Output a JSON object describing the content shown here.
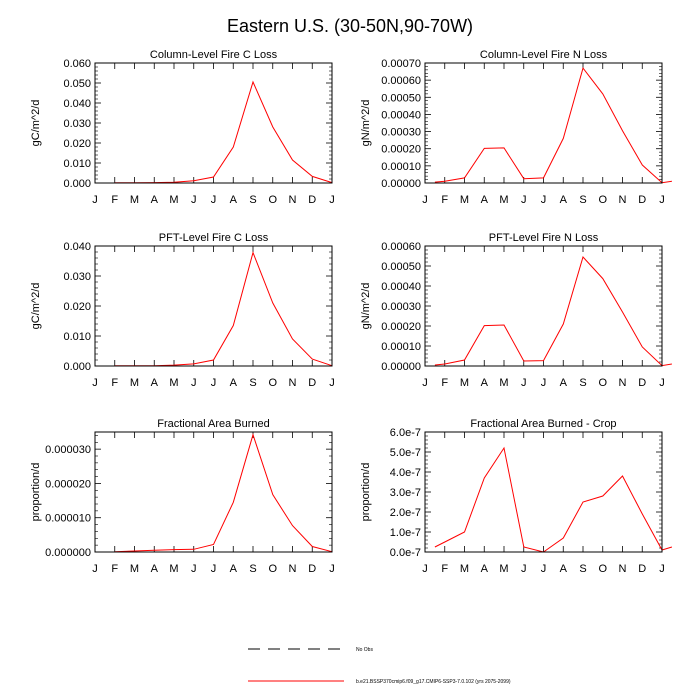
{
  "figure_title": "Eastern U.S. (30-50N,90-70W)",
  "months": [
    "J",
    "F",
    "M",
    "A",
    "M",
    "J",
    "J",
    "A",
    "S",
    "O",
    "N",
    "D",
    "J"
  ],
  "line_color": "#ff0000",
  "legend": {
    "obs_label": "No Obs",
    "model_label": "b.e21.BSSP370cmip6.f09_g17.CMIP6-SSP3-7.0.102 (yrs 2075-2099)"
  },
  "chart_data": [
    {
      "type": "line",
      "title": "Column-Level Fire C Loss",
      "ylabel": "gC/m^2/d",
      "ylim": [
        0,
        0.06
      ],
      "yticks": [
        0,
        0.01,
        0.02,
        0.03,
        0.04,
        0.05,
        0.06
      ],
      "ytick_labels": [
        "0.000",
        "0.010",
        "0.020",
        "0.030",
        "0.040",
        "0.050",
        "0.060"
      ],
      "x": [
        1,
        2,
        3,
        4,
        5,
        6,
        7,
        8,
        9,
        10,
        11,
        12
      ],
      "values": [
        0.0001,
        0.0001,
        0.0002,
        0.0004,
        0.0011,
        0.003,
        0.018,
        0.0505,
        0.028,
        0.0115,
        0.0033,
        0.0002
      ]
    },
    {
      "type": "line",
      "title": "Column-Level Fire N Loss",
      "ylabel": "gN/m^2/d",
      "ylim": [
        0,
        0.0007
      ],
      "yticks": [
        0,
        0.0001,
        0.0002,
        0.0003,
        0.0004,
        0.0005,
        0.0006,
        0.0007
      ],
      "ytick_labels": [
        "0.00000",
        "0.00010",
        "0.00020",
        "0.00030",
        "0.00040",
        "0.00050",
        "0.00060",
        "0.00070"
      ],
      "x": [
        0.5,
        1,
        2,
        3,
        4,
        5,
        6,
        7,
        8,
        9,
        10,
        11,
        12,
        12.5
      ],
      "values": [
        5e-06,
        1e-05,
        3e-05,
        0.000202,
        0.000205,
        2.5e-05,
        3e-05,
        0.00026,
        0.00067,
        0.00052,
        0.000305,
        0.000105,
        2e-06,
        1e-05
      ]
    },
    {
      "type": "line",
      "title": "PFT-Level Fire C Loss",
      "ylabel": "gC/m^2/d",
      "ylim": [
        0,
        0.04
      ],
      "yticks": [
        0,
        0.01,
        0.02,
        0.03,
        0.04
      ],
      "ytick_labels": [
        "0.000",
        "0.010",
        "0.020",
        "0.030",
        "0.040"
      ],
      "x": [
        1,
        2,
        3,
        4,
        5,
        6,
        7,
        8,
        9,
        10,
        11,
        12
      ],
      "values": [
        0.0001,
        0.0001,
        0.0001,
        0.0003,
        0.0007,
        0.002,
        0.0135,
        0.0378,
        0.021,
        0.009,
        0.0023,
        0.0001
      ]
    },
    {
      "type": "line",
      "title": "PFT-Level Fire N Loss",
      "ylabel": "gN/m^2/d",
      "ylim": [
        0,
        0.0006
      ],
      "yticks": [
        0,
        0.0001,
        0.0002,
        0.0003,
        0.0004,
        0.0005,
        0.0006
      ],
      "ytick_labels": [
        "0.00000",
        "0.00010",
        "0.00020",
        "0.00030",
        "0.00040",
        "0.00050",
        "0.00060"
      ],
      "x": [
        0.5,
        1,
        2,
        3,
        4,
        5,
        6,
        7,
        8,
        9,
        10,
        11,
        12,
        12.5
      ],
      "values": [
        5e-06,
        1e-05,
        3e-05,
        0.000202,
        0.000205,
        2.5e-05,
        2.7e-05,
        0.00021,
        0.000545,
        0.000437,
        0.00027,
        9.5e-05,
        2e-06,
        1e-05
      ]
    },
    {
      "type": "line",
      "title": "Fractional Area Burned",
      "ylabel": "proportion/d",
      "ylim": [
        0,
        3.5e-05
      ],
      "yticks": [
        0,
        1e-05,
        2e-05,
        3e-05
      ],
      "ytick_labels": [
        "0.000000",
        "0.000010",
        "0.000020",
        "0.000030"
      ],
      "x": [
        1,
        2,
        3,
        4,
        5,
        6,
        7,
        8,
        9,
        10,
        11,
        12
      ],
      "values": [
        1e-07,
        3e-07,
        5e-07,
        7e-07,
        8e-07,
        2.2e-06,
        1.45e-05,
        3.42e-05,
        1.67e-05,
        7.7e-06,
        1.6e-06,
        1e-07
      ]
    },
    {
      "type": "line",
      "title": "Fractional Area Burned - Crop",
      "ylabel": "proportion/d",
      "ylim": [
        0,
        6e-07
      ],
      "yticks": [
        0,
        1e-07,
        2e-07,
        3e-07,
        4e-07,
        5e-07,
        6e-07
      ],
      "ytick_labels": [
        "0.0e-7",
        "1.0e-7",
        "2.0e-7",
        "3.0e-7",
        "4.0e-7",
        "5.0e-7",
        "6.0e-7"
      ],
      "x": [
        0.5,
        1,
        2,
        3,
        4,
        5,
        6,
        7,
        8,
        9,
        10,
        11,
        12,
        12.5
      ],
      "values": [
        2.5e-08,
        5e-08,
        1e-07,
        3.7e-07,
        5.2e-07,
        2.5e-08,
        0,
        7e-08,
        2.5e-07,
        2.8e-07,
        3.8e-07,
        1.9e-07,
        1e-08,
        2.5e-08
      ]
    }
  ]
}
